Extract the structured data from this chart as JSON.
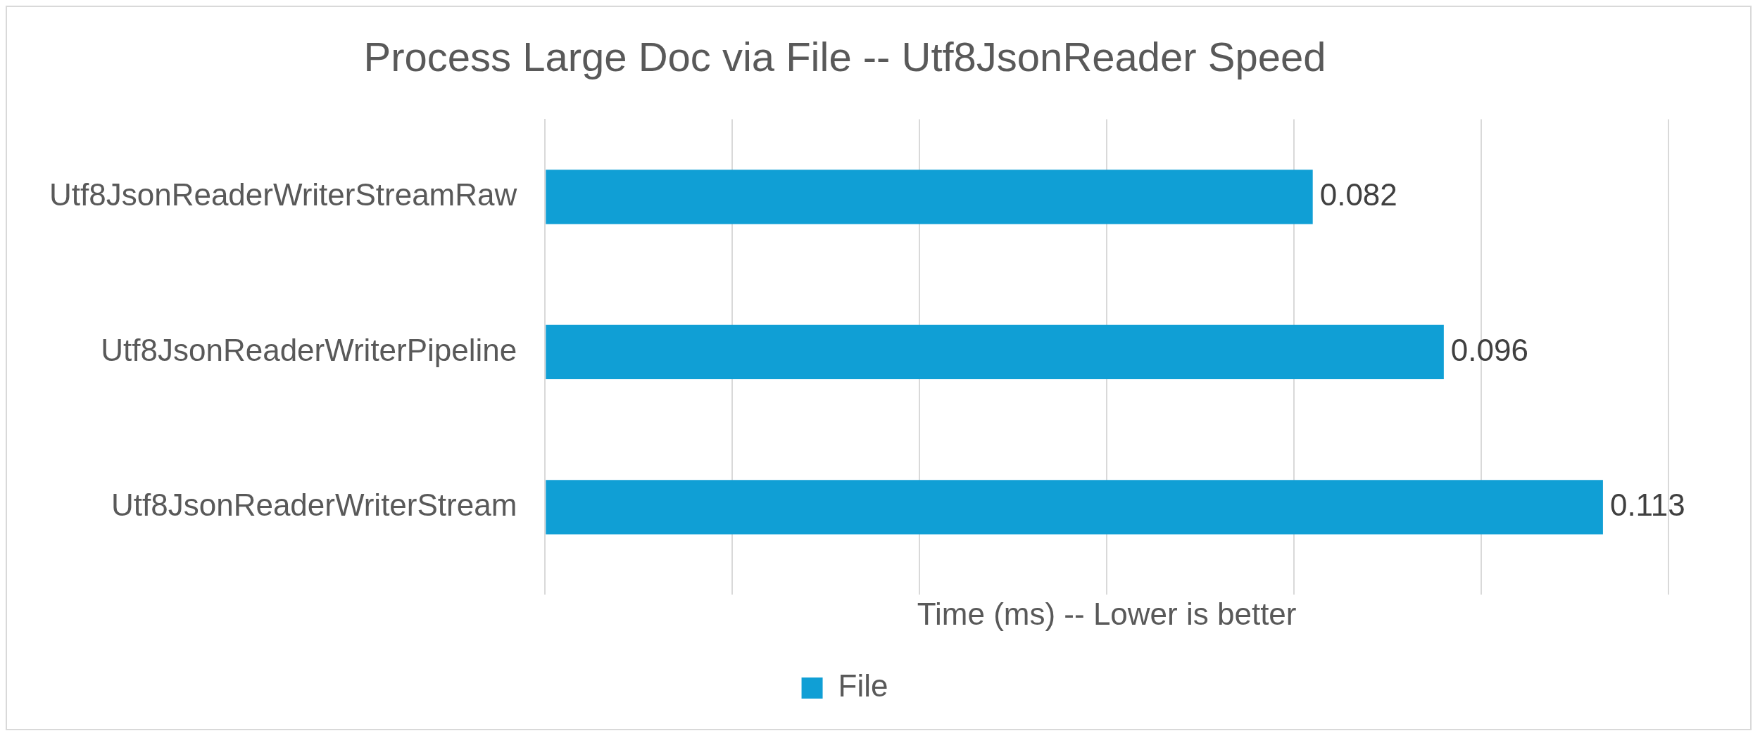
{
  "chart_data": {
    "type": "bar",
    "orientation": "horizontal",
    "title": "Process Large Doc via File -- Utf8JsonReader Speed",
    "xlabel": "Time (ms) -- Lower is better",
    "categories": [
      "Utf8JsonReaderWriterStreamRaw",
      "Utf8JsonReaderWriterPipeline",
      "Utf8JsonReaderWriterStream"
    ],
    "series": [
      {
        "name": "File",
        "color": "#109fd5",
        "values": [
          0.082,
          0.096,
          0.113
        ]
      }
    ],
    "xlim": [
      0,
      0.12
    ],
    "xticks": [
      {
        "value": 0,
        "label": null
      },
      {
        "value": 0.02,
        "label": null
      },
      {
        "value": 0.04,
        "label": null
      },
      {
        "value": 0.06,
        "label": null
      },
      {
        "value": 0.08,
        "label": null
      },
      {
        "value": 0.1,
        "label": null
      },
      {
        "value": 0.12,
        "label": null
      }
    ],
    "tick_labels": "y",
    "grid": "x",
    "legend": "bottom",
    "data_labels": true
  }
}
